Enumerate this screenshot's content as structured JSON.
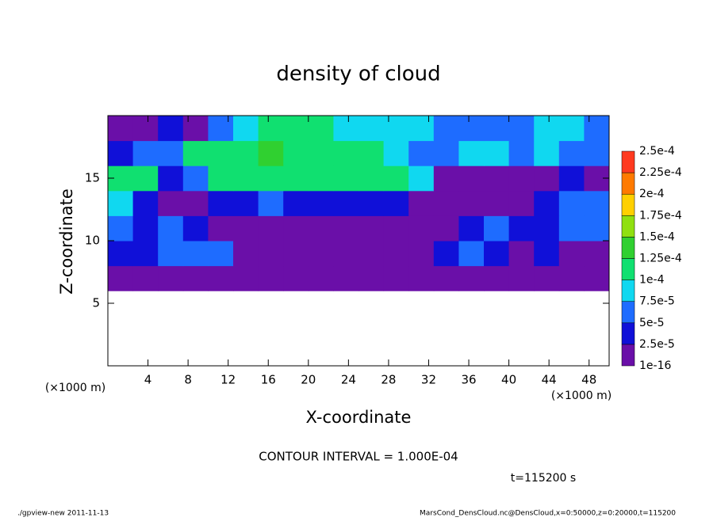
{
  "chart_data": {
    "type": "heatmap",
    "title": "density of cloud",
    "xlabel": "X-coordinate",
    "ylabel": "Z-coordinate",
    "xunit": "(×1000 m)",
    "yunit": "(×1000 m)",
    "annotation": "CONTOUR INTERVAL = 1.000E-04",
    "time_label": "t=115200 s",
    "footer_left": "./gpview-new   2011-11-13",
    "footer_right": "MarsCond_DensCloud.nc@DensCloud,x=0:50000,z=0:20000,t=115200",
    "xlim": [
      0,
      50
    ],
    "ylim": [
      0,
      20
    ],
    "xticks": [
      4,
      8,
      12,
      16,
      20,
      24,
      28,
      32,
      36,
      40,
      44,
      48
    ],
    "yticks": [
      5,
      10,
      15
    ],
    "x": [
      1.25,
      3.75,
      6.25,
      8.75,
      11.25,
      13.75,
      16.25,
      18.75,
      21.25,
      23.75,
      26.25,
      28.75,
      31.25,
      33.75,
      36.25,
      38.75,
      41.25,
      43.75,
      46.25,
      48.75
    ],
    "y": [
      1,
      3,
      5,
      7,
      9,
      11,
      13,
      15,
      17,
      19
    ],
    "z": [
      [
        null,
        null,
        null,
        null,
        null,
        null,
        null,
        null,
        null,
        null,
        null,
        null,
        null,
        null,
        null,
        null,
        null,
        null,
        null,
        null
      ],
      [
        null,
        null,
        null,
        null,
        null,
        null,
        null,
        null,
        null,
        null,
        null,
        null,
        null,
        null,
        null,
        null,
        null,
        null,
        null,
        null
      ],
      [
        null,
        null,
        null,
        null,
        null,
        null,
        null,
        null,
        null,
        null,
        null,
        null,
        null,
        null,
        null,
        null,
        null,
        null,
        null,
        null
      ],
      [
        1e-05,
        1e-05,
        1e-05,
        1e-05,
        1e-05,
        1e-05,
        1e-05,
        1e-05,
        1e-05,
        1e-05,
        1e-05,
        1e-05,
        1e-05,
        1e-05,
        1e-05,
        1e-05,
        1e-05,
        1e-05,
        1e-05,
        1e-05
      ],
      [
        3e-05,
        4e-05,
        6e-05,
        6e-05,
        5e-05,
        2e-05,
        1e-05,
        1e-05,
        1e-05,
        1e-05,
        1e-05,
        1e-05,
        1e-05,
        4e-05,
        5e-05,
        3e-05,
        2e-05,
        3e-05,
        2e-05,
        1e-05
      ],
      [
        6e-05,
        4e-05,
        5e-05,
        3e-05,
        1e-05,
        1e-05,
        1e-05,
        1e-05,
        1e-05,
        1e-05,
        1e-05,
        1e-05,
        1e-05,
        1e-05,
        3e-05,
        5e-05,
        4e-05,
        3e-05,
        6e-05,
        7e-05
      ],
      [
        8e-05,
        4e-05,
        2e-05,
        2e-05,
        3e-05,
        4e-05,
        5e-05,
        4e-05,
        3e-05,
        3e-05,
        3e-05,
        3e-05,
        2e-05,
        2e-05,
        2e-05,
        2e-05,
        2e-05,
        3e-05,
        5e-05,
        6e-05
      ],
      [
        0.00011,
        0.00011,
        3e-05,
        5e-05,
        0.00011,
        0.00012,
        0.00012,
        0.00012,
        0.00012,
        0.00012,
        0.00011,
        0.00011,
        8e-05,
        1e-05,
        1e-05,
        1e-05,
        1e-05,
        1e-05,
        3e-05,
        2e-05
      ],
      [
        4e-05,
        5e-05,
        6e-05,
        0.00011,
        0.00012,
        0.00012,
        0.00013,
        0.00012,
        0.00012,
        0.00012,
        0.00011,
        8e-05,
        7e-05,
        7e-05,
        8e-05,
        8e-05,
        7e-05,
        8e-05,
        6e-05,
        5e-05
      ],
      [
        2e-05,
        2e-05,
        3e-05,
        2e-05,
        5e-05,
        8e-05,
        0.00011,
        0.00011,
        0.00011,
        9e-05,
        9e-05,
        8e-05,
        8e-05,
        7e-05,
        6e-05,
        5e-05,
        6e-05,
        9e-05,
        8e-05,
        6e-05
      ]
    ],
    "levels": [
      {
        "value": 1e-16,
        "label": "1e-16"
      },
      {
        "value": 2.5e-05,
        "label": "2.5e-5"
      },
      {
        "value": 5e-05,
        "label": "5e-5"
      },
      {
        "value": 7.5e-05,
        "label": "7.5e-5"
      },
      {
        "value": 0.0001,
        "label": "1e-4"
      },
      {
        "value": 0.000125,
        "label": "1.25e-4"
      },
      {
        "value": 0.00015,
        "label": "1.5e-4"
      },
      {
        "value": 0.000175,
        "label": "1.75e-4"
      },
      {
        "value": 0.0002,
        "label": "2e-4"
      },
      {
        "value": 0.000225,
        "label": "2.25e-4"
      },
      {
        "value": 0.00025,
        "label": "2.5e-4"
      }
    ],
    "colors": [
      "#6a0fa8",
      "#1010d8",
      "#1e6cff",
      "#10d8f0",
      "#10e070",
      "#30d030",
      "#90e010",
      "#ffd000",
      "#ff7a00",
      "#ff3a20"
    ]
  }
}
